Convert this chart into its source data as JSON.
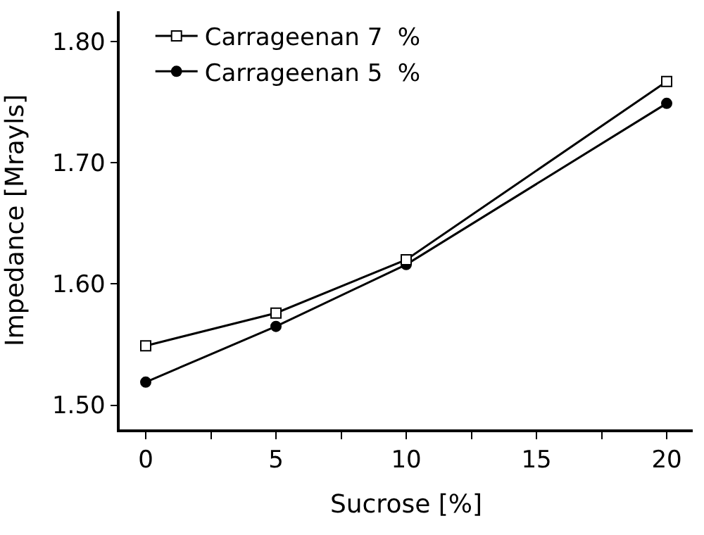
{
  "chart_data": {
    "type": "line",
    "xlabel": "Sucrose [%]",
    "ylabel": "Impedance [Mrayls]",
    "x": [
      0,
      5,
      10,
      20
    ],
    "series": [
      {
        "name": "Carrageenan 7  %",
        "color": "#000000",
        "marker": "square",
        "values": [
          1.549,
          1.576,
          1.62,
          1.767
        ]
      },
      {
        "name": "Carrageenan 5  %",
        "color": "#000000",
        "marker": "circle",
        "values": [
          1.519,
          1.565,
          1.616,
          1.749
        ]
      }
    ],
    "xlim": [
      -1,
      21
    ],
    "xticks": [
      0,
      {
        "value": 2.5,
        "label": null
      },
      5,
      {
        "value": 7.5,
        "label": null
      },
      10,
      {
        "value": 12.5,
        "label": null
      },
      15,
      {
        "value": 17.5,
        "label": null
      },
      20
    ],
    "ylim": [
      1.48,
      1.825
    ],
    "yticks": [
      {
        "value": 1.5,
        "label": "1.50"
      },
      {
        "value": 1.6,
        "label": "1.60"
      },
      {
        "value": 1.7,
        "label": "1.70"
      },
      {
        "value": 1.8,
        "label": "1.80"
      }
    ],
    "legend": "top left",
    "line_style": "solid"
  }
}
